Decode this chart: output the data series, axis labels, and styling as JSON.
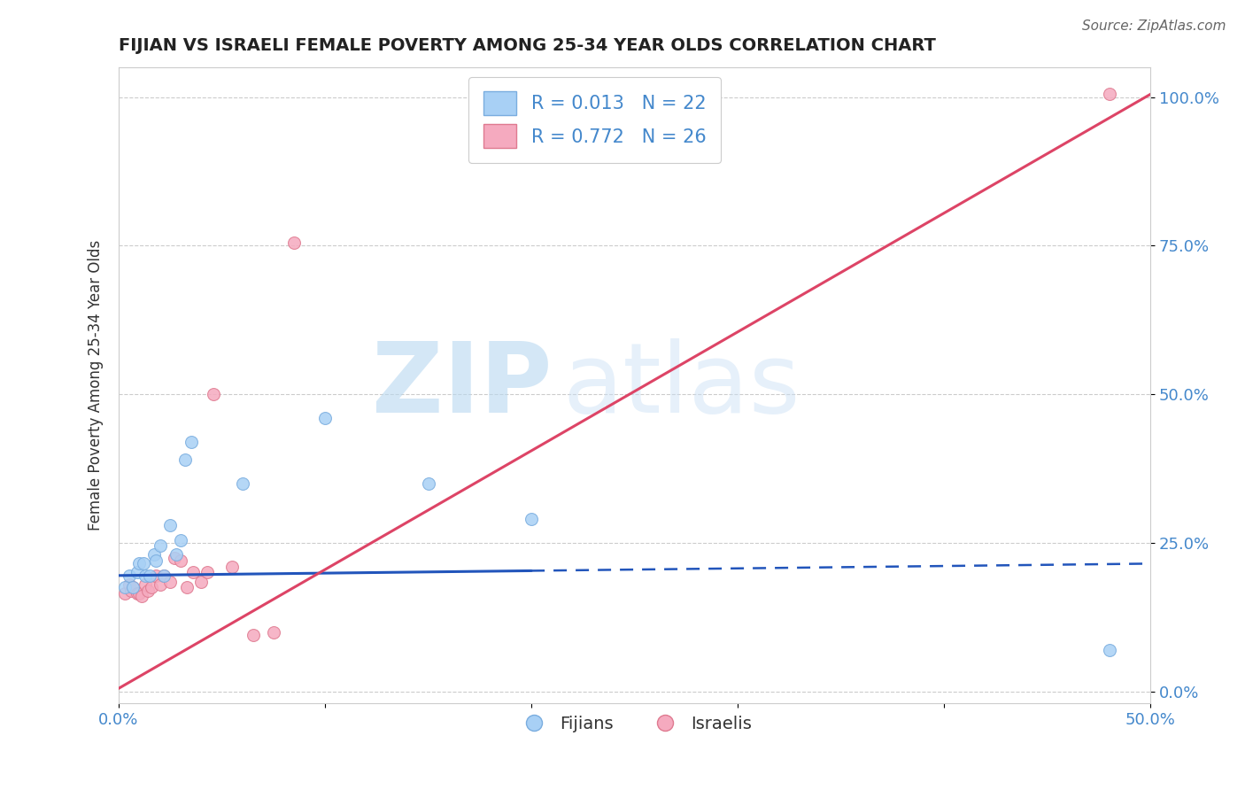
{
  "title": "FIJIAN VS ISRAELI FEMALE POVERTY AMONG 25-34 YEAR OLDS CORRELATION CHART",
  "source": "Source: ZipAtlas.com",
  "ylabel": "Female Poverty Among 25-34 Year Olds",
  "xlim": [
    0.0,
    0.5
  ],
  "ylim": [
    -0.02,
    1.05
  ],
  "xticks": [
    0.0,
    0.1,
    0.2,
    0.3,
    0.4,
    0.5
  ],
  "xticklabels_show": [
    "0.0%",
    "",
    "",
    "",
    "",
    "50.0%"
  ],
  "yticks": [
    0.0,
    0.25,
    0.5,
    0.75,
    1.0
  ],
  "yticklabels": [
    "0.0%",
    "25.0%",
    "50.0%",
    "75.0%",
    "100.0%"
  ],
  "fijian_color": "#a8d0f5",
  "fijian_edge": "#7aaddf",
  "israeli_color": "#f5aabf",
  "israeli_edge": "#df7a90",
  "fijian_line_color": "#2255bb",
  "israeli_line_color": "#dd4466",
  "r_fijian": 0.013,
  "n_fijian": 22,
  "r_israeli": 0.772,
  "n_israeli": 26,
  "watermark_zip": "ZIP",
  "watermark_atlas": "atlas",
  "background_color": "#ffffff",
  "grid_color": "#cccccc",
  "fijian_x": [
    0.003,
    0.005,
    0.007,
    0.009,
    0.01,
    0.012,
    0.013,
    0.015,
    0.017,
    0.018,
    0.02,
    0.022,
    0.025,
    0.028,
    0.03,
    0.032,
    0.035,
    0.06,
    0.1,
    0.15,
    0.2,
    0.48
  ],
  "fijian_y": [
    0.175,
    0.195,
    0.175,
    0.2,
    0.215,
    0.215,
    0.195,
    0.195,
    0.23,
    0.22,
    0.245,
    0.195,
    0.28,
    0.23,
    0.255,
    0.39,
    0.42,
    0.35,
    0.46,
    0.35,
    0.29,
    0.07
  ],
  "israeli_x": [
    0.003,
    0.005,
    0.006,
    0.007,
    0.009,
    0.01,
    0.011,
    0.013,
    0.014,
    0.016,
    0.018,
    0.02,
    0.022,
    0.025,
    0.027,
    0.03,
    0.033,
    0.036,
    0.04,
    0.043,
    0.046,
    0.055,
    0.065,
    0.075,
    0.085,
    0.48
  ],
  "israeli_y": [
    0.165,
    0.18,
    0.17,
    0.175,
    0.165,
    0.165,
    0.16,
    0.18,
    0.17,
    0.175,
    0.195,
    0.18,
    0.195,
    0.185,
    0.225,
    0.22,
    0.175,
    0.2,
    0.185,
    0.2,
    0.5,
    0.21,
    0.095,
    0.1,
    0.755,
    1.005
  ],
  "title_color": "#222222",
  "axis_color": "#4488cc",
  "legend_text_color": "#4488cc",
  "marker_size": 100,
  "fijian_line_slope": 0.04,
  "fijian_line_intercept": 0.195,
  "israeli_line_slope": 2.0,
  "israeli_line_intercept": 0.005
}
